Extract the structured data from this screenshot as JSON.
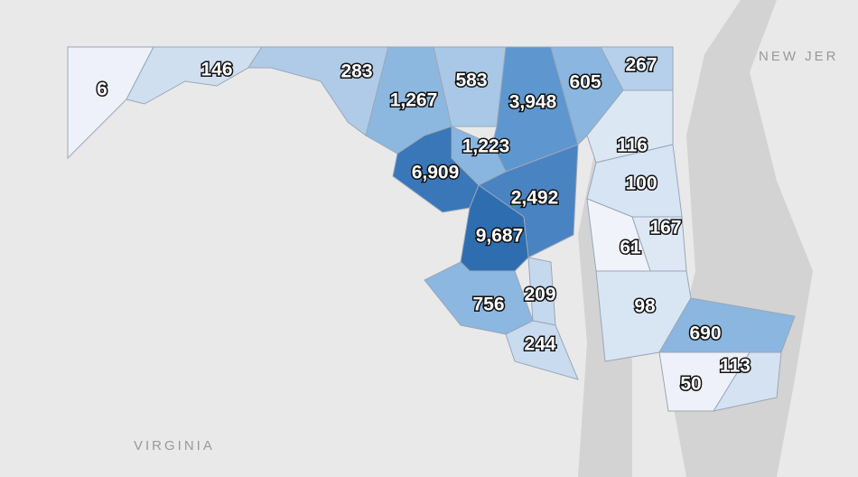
{
  "map": {
    "place_labels": [
      "NEW JER",
      "VIRGINIA"
    ],
    "county_labels": [
      "6",
      "146",
      "283",
      "1,267",
      "583",
      "3,948",
      "605",
      "267",
      "116",
      "1,223",
      "6,909",
      "2,492",
      "100",
      "167",
      "61",
      "9,687",
      "209",
      "756",
      "98",
      "690",
      "244",
      "113",
      "50"
    ]
  }
}
